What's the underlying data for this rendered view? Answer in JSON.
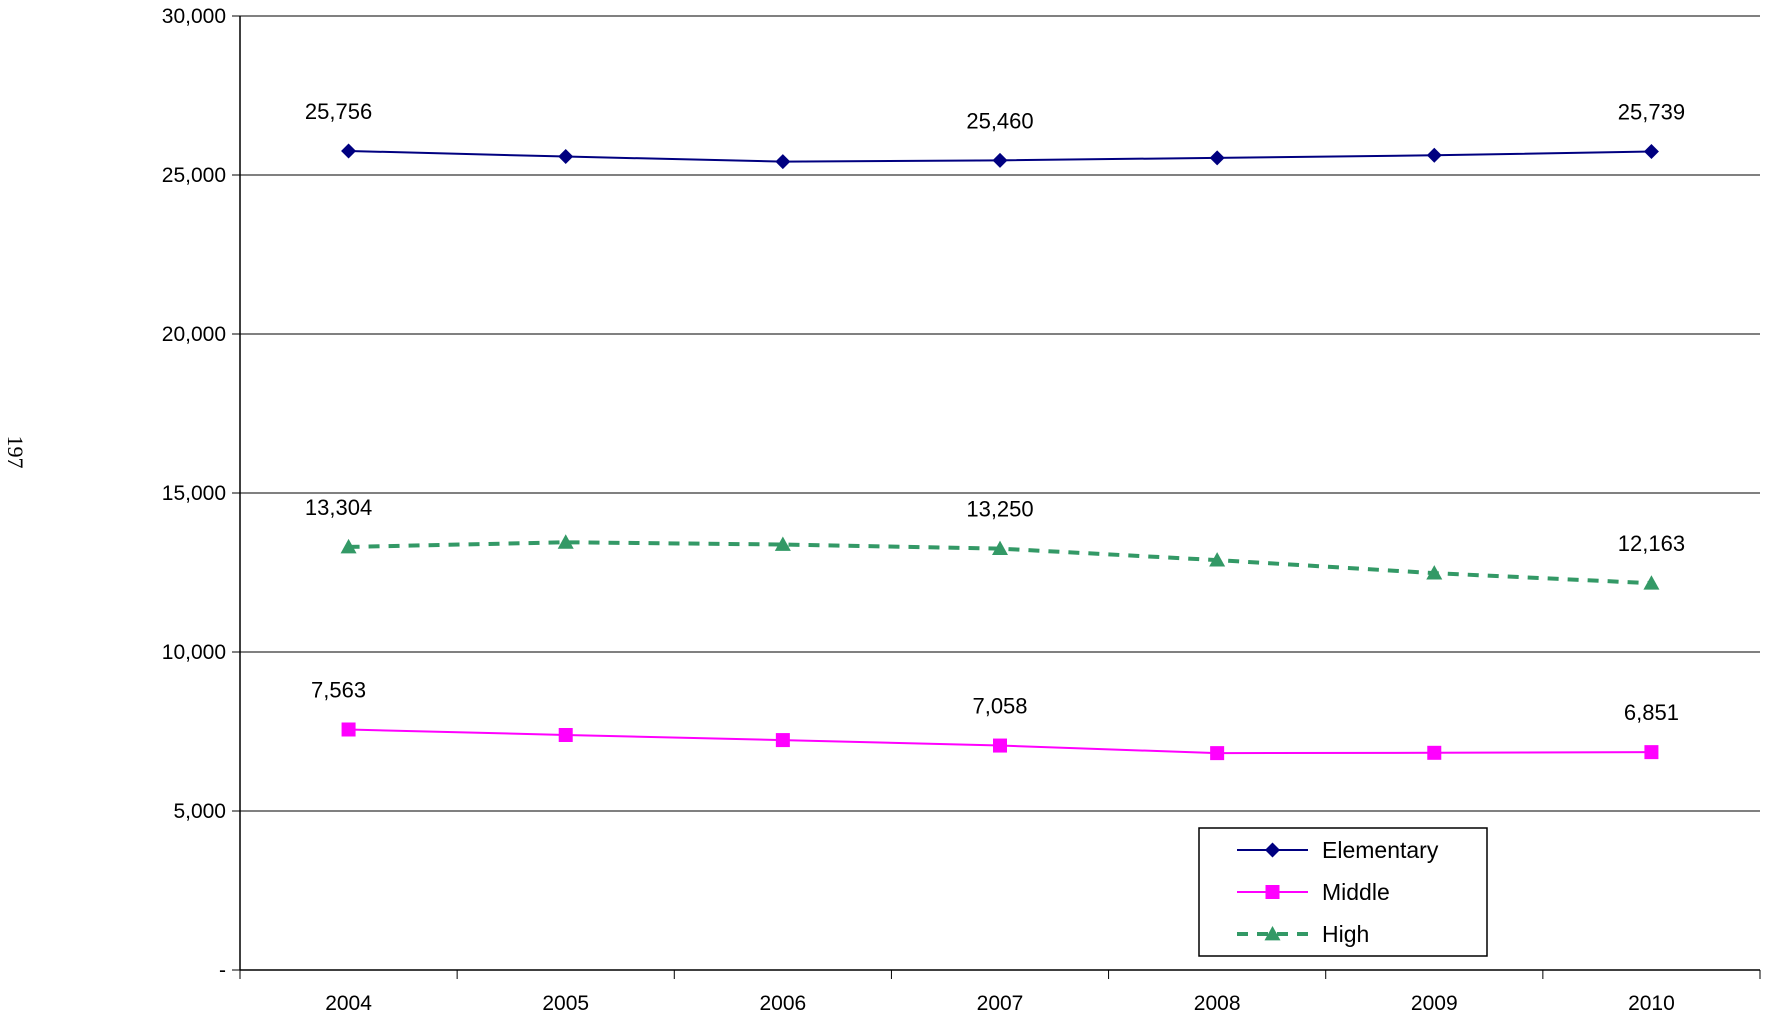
{
  "page_number": "197",
  "chart_data": {
    "type": "line",
    "title": "",
    "xlabel": "",
    "ylabel": "",
    "ylim": [
      0,
      30000
    ],
    "y_ticks": [
      0,
      5000,
      10000,
      15000,
      20000,
      25000,
      30000
    ],
    "y_tick_labels": [
      "-",
      "5,000",
      "10,000",
      "15,000",
      "20,000",
      "25,000",
      "30,000"
    ],
    "categories": [
      "2004",
      "2005",
      "2006",
      "2007",
      "2008",
      "2009",
      "2010"
    ],
    "grid": "horizontal",
    "legend_position": "bottom-right",
    "series": [
      {
        "name": "Elementary",
        "color": "#000080",
        "marker": "diamond",
        "line_style": "solid",
        "values": [
          25756,
          25580,
          25420,
          25460,
          25540,
          25620,
          25739
        ],
        "data_labels": {
          "0": "25,756",
          "3": "25,460",
          "6": "25,739"
        }
      },
      {
        "name": "Middle",
        "color": "#FF00FF",
        "marker": "square",
        "line_style": "solid",
        "values": [
          7563,
          7390,
          7230,
          7058,
          6820,
          6830,
          6851
        ],
        "data_labels": {
          "0": "7,563",
          "3": "7,058",
          "6": "6,851"
        }
      },
      {
        "name": "High",
        "color": "#339966",
        "marker": "triangle",
        "line_style": "dashed",
        "values": [
          13304,
          13450,
          13380,
          13250,
          12890,
          12480,
          12163
        ],
        "data_labels": {
          "0": "13,304",
          "3": "13,250",
          "6": "12,163"
        }
      }
    ]
  }
}
